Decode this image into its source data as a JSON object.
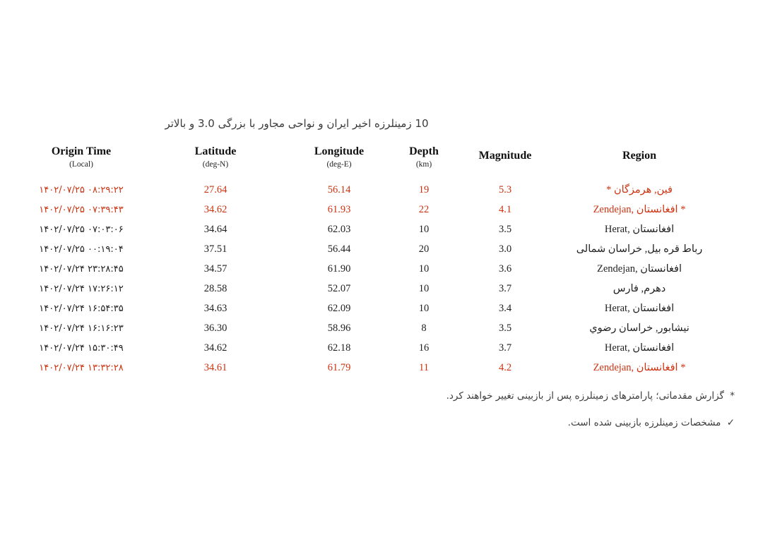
{
  "colors": {
    "background": "#ffffff",
    "highlight_red": "#cc3311",
    "text": "#1f1f1f",
    "note_text": "#3d3d3d"
  },
  "title": "10 زمینلرزه اخیر ایران و نواحی مجاور با بزرگی 3.0 و بالاتر",
  "table": {
    "columns": [
      {
        "label": "Origin Time",
        "sublabel": "(Local)"
      },
      {
        "label": "Latitude",
        "sublabel": "(deg-N)"
      },
      {
        "label": "Longitude",
        "sublabel": "(deg-E)"
      },
      {
        "label": "Depth",
        "sublabel": "(km)"
      },
      {
        "label": "Magnitude",
        "sublabel": ""
      },
      {
        "label": "Region",
        "sublabel": ""
      }
    ],
    "rows": [
      {
        "origin_time": "۱۴۰۲/۰۷/۲۵ ۰۸:۲۹:۲۲",
        "latitude": "27.64",
        "longitude": "56.14",
        "depth": "19",
        "magnitude": "5.3",
        "region": "فین, هرمزگان *",
        "highlighted": true
      },
      {
        "origin_time": "۱۴۰۲/۰۷/۲۵ ۰۷:۳۹:۴۳",
        "latitude": "34.62",
        "longitude": "61.93",
        "depth": "22",
        "magnitude": "4.1",
        "region": "Zendejan, افغانستان *",
        "highlighted": true
      },
      {
        "origin_time": "۱۴۰۲/۰۷/۲۵ ۰۷:۰۳:۰۶",
        "latitude": "34.64",
        "longitude": "62.03",
        "depth": "10",
        "magnitude": "3.5",
        "region": "Herat, افغانستان",
        "highlighted": false
      },
      {
        "origin_time": "۱۴۰۲/۰۷/۲۵ ۰۰:۱۹:۰۴",
        "latitude": "37.51",
        "longitude": "56.44",
        "depth": "20",
        "magnitude": "3.0",
        "region": "رباط قره بیل, خراسان شمالی",
        "highlighted": false
      },
      {
        "origin_time": "۱۴۰۲/۰۷/۲۴ ۲۳:۲۸:۴۵",
        "latitude": "34.57",
        "longitude": "61.90",
        "depth": "10",
        "magnitude": "3.6",
        "region": "Zendejan, افغانستان",
        "highlighted": false
      },
      {
        "origin_time": "۱۴۰۲/۰۷/۲۴ ۱۷:۲۶:۱۲",
        "latitude": "28.58",
        "longitude": "52.07",
        "depth": "10",
        "magnitude": "3.7",
        "region": "دهرم, فارس",
        "highlighted": false
      },
      {
        "origin_time": "۱۴۰۲/۰۷/۲۴ ۱۶:۵۴:۳۵",
        "latitude": "34.63",
        "longitude": "62.09",
        "depth": "10",
        "magnitude": "3.4",
        "region": "Herat, افغانستان",
        "highlighted": false
      },
      {
        "origin_time": "۱۴۰۲/۰۷/۲۴ ۱۶:۱۶:۲۳",
        "latitude": "36.30",
        "longitude": "58.96",
        "depth": "8",
        "magnitude": "3.5",
        "region": "نیشابور, خراسان رضوي",
        "highlighted": false
      },
      {
        "origin_time": "۱۴۰۲/۰۷/۲۴ ۱۵:۳۰:۴۹",
        "latitude": "34.62",
        "longitude": "62.18",
        "depth": "16",
        "magnitude": "3.7",
        "region": "Herat, افغانستان",
        "highlighted": false
      },
      {
        "origin_time": "۱۴۰۲/۰۷/۲۴ ۱۳:۳۲:۲۸",
        "latitude": "34.61",
        "longitude": "61.79",
        "depth": "11",
        "magnitude": "4.2",
        "region": "Zendejan, افغانستان *",
        "highlighted": true
      }
    ]
  },
  "notes": [
    {
      "marker": "*",
      "text": "گزارش مقدماتی؛ پارامترهای زمینلرزه پس از بازبینی تغییر خواهند کرد."
    },
    {
      "marker": "✓",
      "text": "مشخصات زمینلرزه بازبینی شده است."
    }
  ]
}
